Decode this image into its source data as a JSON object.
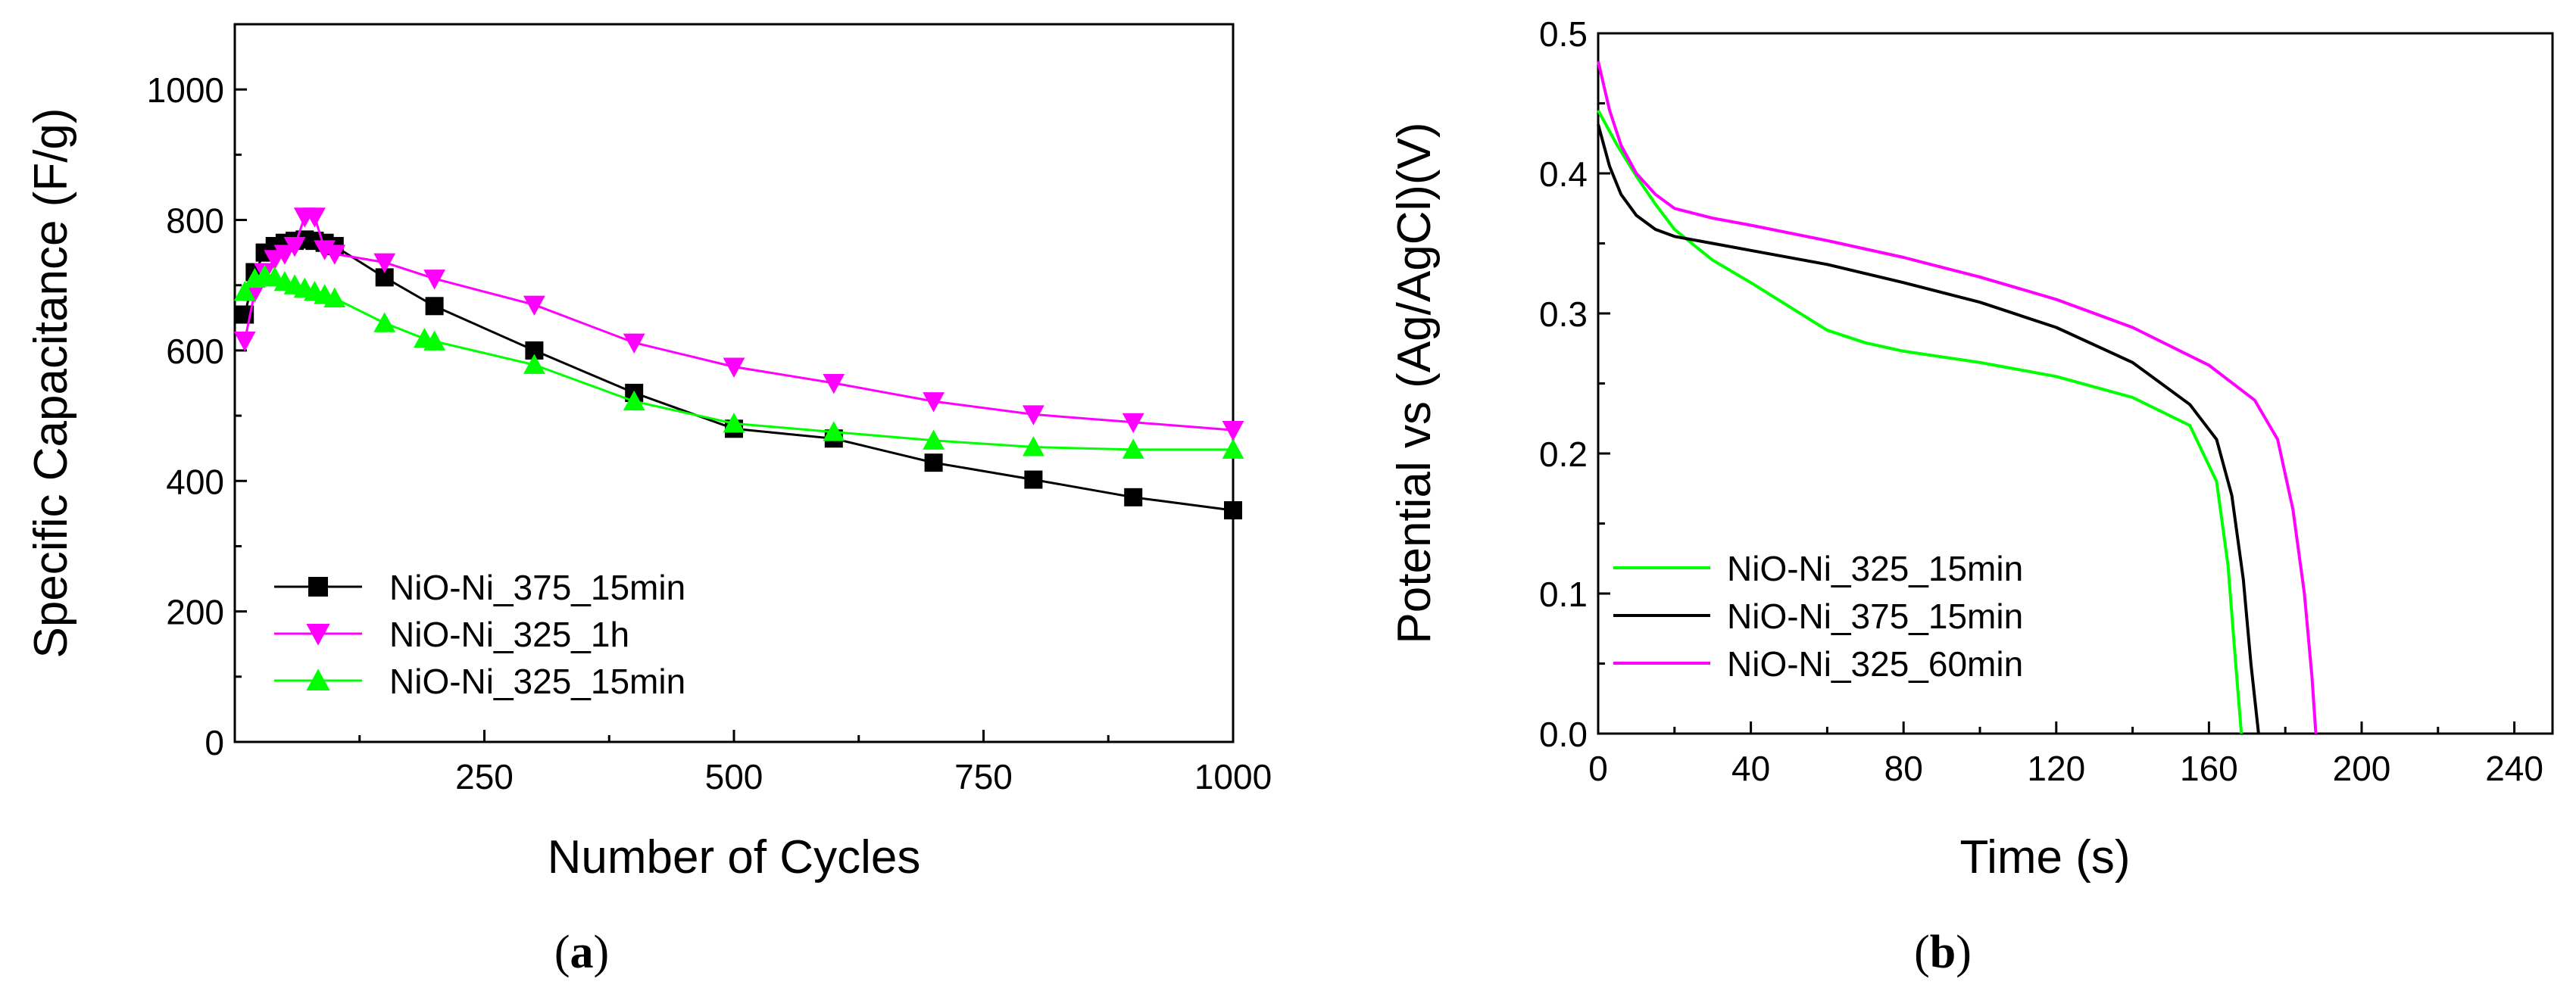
{
  "chart_data": [
    {
      "panel_label": "a",
      "type": "line",
      "xlabel": "Number of Cycles",
      "ylabel": "Specific Capacitance (F/g)",
      "xlim": [
        0,
        1000
      ],
      "ylim": [
        0,
        1100
      ],
      "xticks": [
        250,
        500,
        750,
        1000
      ],
      "yticks": [
        0,
        200,
        400,
        600,
        800,
        1000
      ],
      "legend_position": "bottom-left",
      "series": [
        {
          "name": "NiO-Ni_375_15min",
          "color": "#000000",
          "marker": "square",
          "x": [
            10,
            20,
            30,
            40,
            50,
            60,
            70,
            80,
            90,
            100,
            150,
            200,
            300,
            400,
            500,
            600,
            700,
            800,
            900,
            1000
          ],
          "y": [
            655,
            720,
            750,
            760,
            765,
            768,
            770,
            768,
            765,
            760,
            712,
            668,
            600,
            535,
            480,
            465,
            428,
            402,
            375,
            355
          ]
        },
        {
          "name": "NiO-Ni_325_1h",
          "color": "#ff00ff",
          "marker": "triangle-down",
          "x": [
            10,
            20,
            30,
            40,
            50,
            60,
            70,
            80,
            90,
            100,
            150,
            200,
            300,
            400,
            500,
            600,
            700,
            800,
            900,
            1000
          ],
          "y": [
            615,
            690,
            720,
            740,
            748,
            760,
            805,
            805,
            755,
            748,
            735,
            710,
            670,
            612,
            575,
            550,
            522,
            502,
            490,
            478
          ]
        },
        {
          "name": "NiO-Ni_325_15min",
          "color": "#00ff00",
          "marker": "triangle-up",
          "x": [
            10,
            20,
            30,
            40,
            50,
            60,
            70,
            80,
            90,
            100,
            150,
            190,
            200,
            300,
            400,
            500,
            600,
            700,
            800,
            900,
            1000
          ],
          "y": [
            690,
            710,
            715,
            712,
            705,
            700,
            695,
            690,
            685,
            680,
            642,
            618,
            614,
            578,
            522,
            488,
            475,
            462,
            452,
            448,
            448
          ]
        }
      ]
    },
    {
      "panel_label": "b",
      "type": "line",
      "xlabel": "Time (s)",
      "ylabel": "Potential vs (Ag/AgCl)(V)",
      "xlim": [
        0,
        250
      ],
      "ylim": [
        0,
        0.5
      ],
      "xticks": [
        "0",
        "40",
        "80",
        "120",
        "160",
        "200",
        "240"
      ],
      "yticks": [
        "0.0",
        "0.1",
        "0.2",
        "0.3",
        "0.4",
        "0.5"
      ],
      "legend_position": "bottom-left",
      "series": [
        {
          "name": "NiO-Ni_325_15min",
          "color": "#00ff00",
          "x": [
            0,
            5,
            10,
            15,
            20,
            30,
            40,
            50,
            60,
            70,
            80,
            100,
            120,
            140,
            155,
            162,
            165,
            167,
            168.5
          ],
          "y": [
            0.445,
            0.42,
            0.398,
            0.378,
            0.36,
            0.338,
            0.322,
            0.305,
            0.288,
            0.279,
            0.273,
            0.265,
            0.255,
            0.24,
            0.22,
            0.18,
            0.12,
            0.05,
            0.0
          ]
        },
        {
          "name": "NiO-Ni_375_15min",
          "color": "#000000",
          "x": [
            0,
            3,
            6,
            10,
            15,
            20,
            30,
            40,
            60,
            80,
            100,
            120,
            140,
            155,
            162,
            166,
            169,
            171,
            173
          ],
          "y": [
            0.435,
            0.405,
            0.385,
            0.37,
            0.36,
            0.355,
            0.35,
            0.345,
            0.335,
            0.322,
            0.308,
            0.29,
            0.265,
            0.235,
            0.21,
            0.17,
            0.11,
            0.05,
            0.0
          ]
        },
        {
          "name": "NiO-Ni_325_60min",
          "color": "#ff00ff",
          "x": [
            0,
            3,
            6,
            10,
            15,
            20,
            30,
            40,
            60,
            80,
            100,
            120,
            140,
            160,
            172,
            178,
            182,
            185,
            187,
            188
          ],
          "y": [
            0.48,
            0.445,
            0.42,
            0.4,
            0.385,
            0.375,
            0.368,
            0.363,
            0.352,
            0.34,
            0.326,
            0.31,
            0.29,
            0.263,
            0.238,
            0.21,
            0.16,
            0.1,
            0.04,
            0.0
          ]
        }
      ]
    }
  ]
}
